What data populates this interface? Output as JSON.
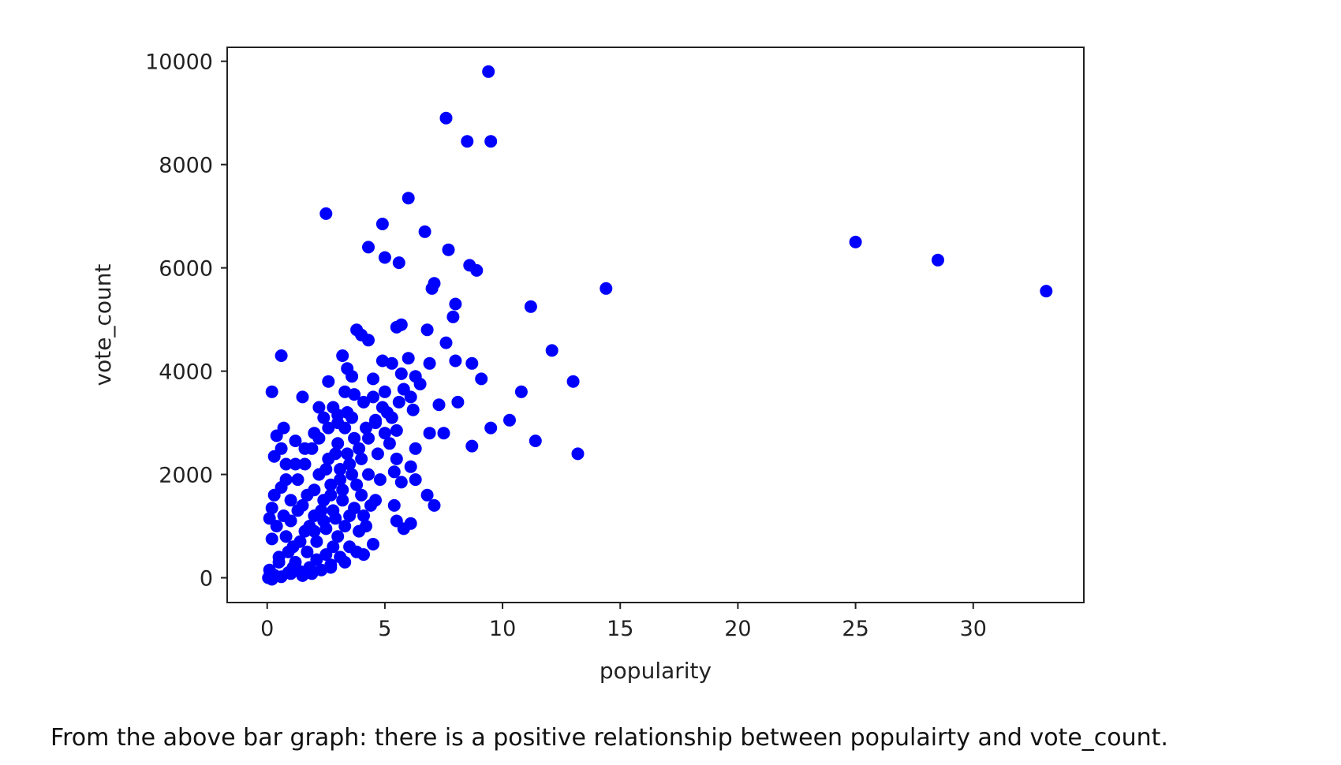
{
  "chart_data": {
    "type": "scatter",
    "title": "",
    "xlabel": "popularity",
    "ylabel": "vote_count",
    "xlim": [
      -1.7,
      34.7
    ],
    "ylim": [
      -480,
      10270
    ],
    "xticks": [
      0,
      5,
      10,
      15,
      20,
      25,
      30
    ],
    "yticks": [
      0,
      2000,
      4000,
      6000,
      8000,
      10000
    ],
    "grid": false,
    "legend": "none",
    "marker_color": "#0000ff",
    "points": [
      [
        9.4,
        9800
      ],
      [
        7.6,
        8900
      ],
      [
        8.5,
        8450
      ],
      [
        9.5,
        8450
      ],
      [
        6.0,
        7350
      ],
      [
        2.5,
        7050
      ],
      [
        4.9,
        6850
      ],
      [
        6.7,
        6700
      ],
      [
        4.3,
        6400
      ],
      [
        7.7,
        6350
      ],
      [
        5.0,
        6200
      ],
      [
        5.6,
        6100
      ],
      [
        8.6,
        6050
      ],
      [
        8.9,
        5950
      ],
      [
        7.1,
        5700
      ],
      [
        7.0,
        5600
      ],
      [
        14.4,
        5600
      ],
      [
        25.0,
        6500
      ],
      [
        28.5,
        6150
      ],
      [
        33.1,
        5550
      ],
      [
        8.0,
        5300
      ],
      [
        11.2,
        5250
      ],
      [
        7.9,
        5050
      ],
      [
        5.7,
        4900
      ],
      [
        5.5,
        4850
      ],
      [
        6.8,
        4800
      ],
      [
        3.8,
        4800
      ],
      [
        4.0,
        4700
      ],
      [
        4.3,
        4600
      ],
      [
        7.6,
        4550
      ],
      [
        12.1,
        4400
      ],
      [
        0.6,
        4300
      ],
      [
        3.2,
        4300
      ],
      [
        4.9,
        4200
      ],
      [
        6.0,
        4250
      ],
      [
        8.0,
        4200
      ],
      [
        8.7,
        4150
      ],
      [
        6.9,
        4150
      ],
      [
        5.3,
        4150
      ],
      [
        3.4,
        4050
      ],
      [
        5.7,
        3950
      ],
      [
        6.3,
        3900
      ],
      [
        4.5,
        3850
      ],
      [
        9.1,
        3850
      ],
      [
        13.0,
        3800
      ],
      [
        2.6,
        3800
      ],
      [
        6.5,
        3750
      ],
      [
        5.8,
        3650
      ],
      [
        0.2,
        3600
      ],
      [
        10.8,
        3600
      ],
      [
        1.5,
        3500
      ],
      [
        3.7,
        3550
      ],
      [
        6.1,
        3500
      ],
      [
        8.1,
        3400
      ],
      [
        7.3,
        3350
      ],
      [
        2.2,
        3300
      ],
      [
        4.1,
        3400
      ],
      [
        6.2,
        3250
      ],
      [
        5.1,
        3200
      ],
      [
        10.3,
        3050
      ],
      [
        3.0,
        3150
      ],
      [
        4.6,
        3050
      ],
      [
        9.5,
        2900
      ],
      [
        7.5,
        2800
      ],
      [
        6.9,
        2800
      ],
      [
        5.5,
        2850
      ],
      [
        11.4,
        2650
      ],
      [
        8.7,
        2550
      ],
      [
        13.2,
        2400
      ],
      [
        0.7,
        2900
      ],
      [
        0.4,
        2750
      ],
      [
        1.2,
        2650
      ],
      [
        6.3,
        2500
      ],
      [
        0.6,
        2500
      ],
      [
        0.3,
        2350
      ],
      [
        0.8,
        2200
      ],
      [
        5.5,
        2300
      ],
      [
        6.1,
        2150
      ],
      [
        5.4,
        2050
      ],
      [
        6.3,
        1900
      ],
      [
        5.7,
        1850
      ],
      [
        6.8,
        1600
      ],
      [
        7.1,
        1400
      ],
      [
        4.6,
        1500
      ],
      [
        5.4,
        1400
      ],
      [
        5.5,
        1100
      ],
      [
        6.1,
        1050
      ],
      [
        5.8,
        950
      ],
      [
        4.2,
        1000
      ],
      [
        4.5,
        650
      ],
      [
        4.1,
        450
      ],
      [
        0.3,
        1600
      ],
      [
        0.6,
        1750
      ],
      [
        0.2,
        1350
      ],
      [
        0.1,
        1150
      ],
      [
        0.4,
        1000
      ],
      [
        0.2,
        750
      ],
      [
        0.5,
        400
      ],
      [
        0.1,
        150
      ],
      [
        0.3,
        50
      ],
      [
        0.05,
        0
      ],
      [
        0.2,
        -30
      ],
      [
        0.6,
        20
      ],
      [
        1.0,
        80
      ],
      [
        1.4,
        120
      ],
      [
        1.8,
        200
      ],
      [
        2.1,
        350
      ],
      [
        2.5,
        450
      ],
      [
        2.8,
        600
      ],
      [
        3.0,
        800
      ],
      [
        1.1,
        600
      ],
      [
        1.6,
        900
      ],
      [
        2.0,
        1200
      ],
      [
        2.4,
        1500
      ],
      [
        2.7,
        1800
      ],
      [
        3.1,
        2100
      ],
      [
        3.4,
        2400
      ],
      [
        3.7,
        2700
      ],
      [
        1.3,
        1300
      ],
      [
        1.7,
        1600
      ],
      [
        2.2,
        2000
      ],
      [
        2.6,
        2300
      ],
      [
        3.0,
        2600
      ],
      [
        3.3,
        2900
      ],
      [
        3.6,
        3100
      ],
      [
        1.0,
        1100
      ],
      [
        1.5,
        1400
      ],
      [
        2.0,
        1700
      ],
      [
        2.5,
        2100
      ],
      [
        2.9,
        2400
      ],
      [
        3.2,
        1500
      ],
      [
        3.5,
        1200
      ],
      [
        3.8,
        1800
      ],
      [
        4.0,
        2300
      ],
      [
        4.3,
        2700
      ],
      [
        4.6,
        3000
      ],
      [
        4.9,
        3300
      ],
      [
        5.2,
        2600
      ],
      [
        4.8,
        1900
      ],
      [
        4.4,
        1400
      ],
      [
        3.9,
        900
      ],
      [
        3.5,
        600
      ],
      [
        3.1,
        400
      ],
      [
        2.7,
        250
      ],
      [
        2.3,
        150
      ],
      [
        1.9,
        80
      ],
      [
        1.5,
        40
      ],
      [
        1.2,
        300
      ],
      [
        0.9,
        500
      ],
      [
        0.8,
        800
      ],
      [
        0.7,
        1200
      ],
      [
        1.0,
        1500
      ],
      [
        1.3,
        1900
      ],
      [
        1.6,
        2200
      ],
      [
        1.9,
        2500
      ],
      [
        2.2,
        2700
      ],
      [
        2.6,
        2900
      ],
      [
        3.0,
        3000
      ],
      [
        3.4,
        3200
      ],
      [
        2.0,
        900
      ],
      [
        2.4,
        1100
      ],
      [
        2.8,
        1300
      ],
      [
        3.2,
        1700
      ],
      [
        3.6,
        2000
      ],
      [
        4.0,
        1600
      ],
      [
        4.3,
        2000
      ],
      [
        4.7,
        2400
      ],
      [
        5.0,
        2800
      ],
      [
        5.3,
        3100
      ],
      [
        5.6,
        3400
      ],
      [
        1.1,
        200
      ],
      [
        1.7,
        500
      ],
      [
        2.1,
        700
      ],
      [
        2.5,
        950
      ],
      [
        2.9,
        1150
      ],
      [
        3.3,
        1000
      ],
      [
        3.7,
        1350
      ],
      [
        4.1,
        1200
      ],
      [
        0.5,
        300
      ],
      [
        0.9,
        100
      ],
      [
        1.4,
        700
      ],
      [
        1.8,
        1000
      ],
      [
        2.3,
        1300
      ],
      [
        2.7,
        1600
      ],
      [
        3.1,
        1900
      ],
      [
        3.5,
        2200
      ],
      [
        3.9,
        2500
      ],
      [
        4.2,
        2900
      ],
      [
        4.5,
        3500
      ],
      [
        5.0,
        3600
      ],
      [
        0.8,
        1900
      ],
      [
        1.2,
        2200
      ],
      [
        1.6,
        2500
      ],
      [
        2.0,
        2800
      ],
      [
        2.4,
        3100
      ],
      [
        2.8,
        3300
      ],
      [
        3.3,
        3600
      ],
      [
        3.6,
        3900
      ],
      [
        2.7,
        200
      ],
      [
        3.3,
        300
      ],
      [
        3.8,
        500
      ]
    ]
  },
  "caption": "From the above bar graph: there is a positive relationship between populairty and vote_count."
}
